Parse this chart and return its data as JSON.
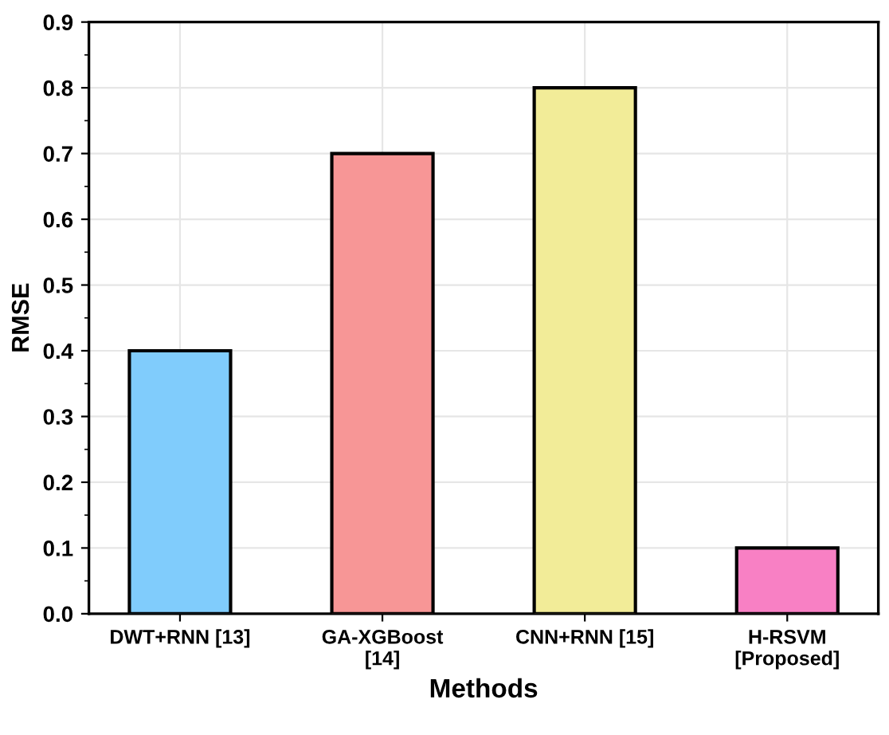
{
  "chart_data": {
    "type": "bar",
    "xlabel": "Methods",
    "ylabel": "RMSE",
    "categories": [
      "DWT+RNN [13]",
      "GA-XGBoost\n[14]",
      "CNN+RNN [15]",
      "H-RSVM\n[Proposed]"
    ],
    "values": [
      0.4,
      0.7,
      0.8,
      0.1
    ],
    "colors": [
      "#80ccfc",
      "#f79696",
      "#f2ec98",
      "#f880c4"
    ],
    "ylim": [
      0,
      0.9
    ],
    "yticks": [
      {
        "value": 0,
        "label": "0.0"
      },
      0.1,
      0.2,
      0.3,
      0.4,
      0.5,
      0.6,
      0.7,
      0.8,
      0.9
    ],
    "grid": true
  }
}
